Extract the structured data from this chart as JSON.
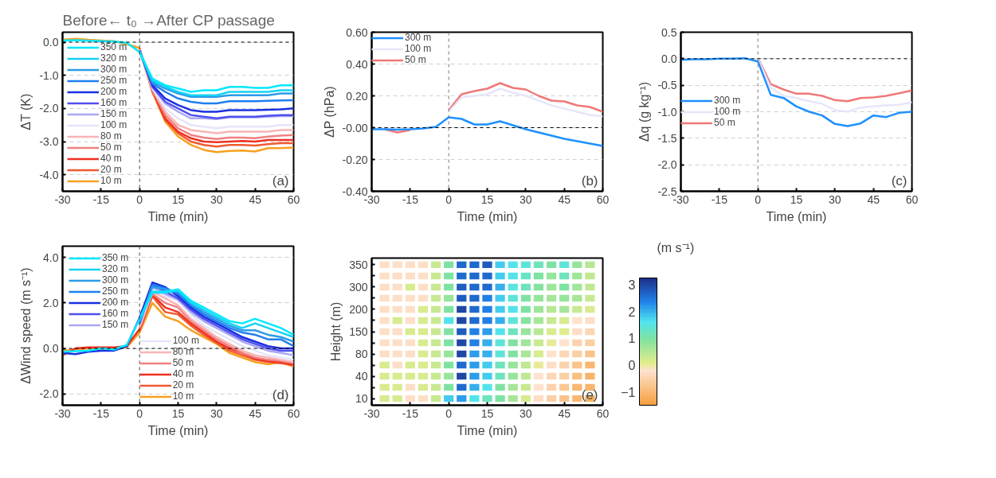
{
  "chart_data": [
    {
      "type": "line",
      "title": "Before← t₀ →After CP passage",
      "xlabel": "Time (min)",
      "ylabel": "ΔT (K)",
      "annotations": [
        "(a)"
      ],
      "legend": "left",
      "grid": "y",
      "line_style": "solid",
      "xlim": [
        -30,
        60
      ],
      "xticks": [
        -30,
        -15,
        0,
        15,
        30,
        45,
        60
      ],
      "ylim": [
        -4.5,
        0.3
      ],
      "yticks": [
        {
          "value": 0,
          "label": "0.0"
        },
        {
          "value": -1,
          "label": "-1.0"
        },
        {
          "value": -2,
          "label": "-2.0"
        },
        {
          "value": -3,
          "label": "-3.0"
        },
        {
          "value": -4,
          "label": "-4.0"
        }
      ],
      "ref_lines": [
        {
          "axis": "y",
          "value": 0,
          "color": "#000000",
          "line_style": "dashed"
        },
        {
          "axis": "x",
          "value": 0,
          "color": "#444444",
          "line_style": "dashed"
        }
      ],
      "x": [
        -30,
        -25,
        -20,
        -15,
        -10,
        -5,
        0,
        5,
        10,
        15,
        20,
        25,
        30,
        35,
        40,
        45,
        50,
        55,
        60
      ],
      "series": [
        {
          "name": "350 m",
          "color": "#00e8ff",
          "values": [
            0.05,
            0.06,
            0.04,
            0.03,
            0.02,
            -0.02,
            -0.3,
            -1.1,
            -1.3,
            -1.4,
            -1.5,
            -1.45,
            -1.45,
            -1.35,
            -1.35,
            -1.38,
            -1.38,
            -1.3,
            -1.3
          ]
        },
        {
          "name": "320 m",
          "color": "#16d2f2",
          "values": [
            null,
            null,
            null,
            null,
            null,
            null,
            -0.29,
            -1.15,
            -1.35,
            -1.5,
            -1.6,
            -1.6,
            -1.6,
            -1.5,
            -1.5,
            -1.5,
            -1.5,
            -1.45,
            -1.45
          ]
        },
        {
          "name": "300 m",
          "color": "#2a9ce8",
          "values": [
            null,
            null,
            null,
            null,
            null,
            null,
            -0.28,
            -1.2,
            -1.4,
            -1.55,
            -1.65,
            -1.65,
            -1.65,
            -1.6,
            -1.6,
            -1.6,
            -1.6,
            -1.55,
            -1.55
          ]
        },
        {
          "name": "250 m",
          "color": "#1e7ff0",
          "values": [
            null,
            null,
            null,
            null,
            null,
            null,
            -0.27,
            -1.25,
            -1.5,
            -1.7,
            -1.8,
            -1.85,
            -1.85,
            -1.78,
            -1.78,
            -1.78,
            -1.77,
            -1.76,
            -1.75
          ]
        },
        {
          "name": "200 m",
          "color": "#1a30e0",
          "values": [
            null,
            null,
            null,
            null,
            null,
            null,
            -0.26,
            -1.3,
            -1.7,
            -1.9,
            -2.05,
            -2.1,
            -2.1,
            -2.05,
            -2.05,
            -2.05,
            -2.04,
            -2.03,
            -2.0
          ]
        },
        {
          "name": "160 m",
          "color": "#5050f0",
          "values": [
            null,
            null,
            null,
            null,
            null,
            null,
            -0.25,
            -1.35,
            -1.8,
            -2.0,
            -2.2,
            -2.25,
            -2.3,
            -2.25,
            -2.25,
            -2.25,
            -2.22,
            -2.2,
            -2.2
          ]
        },
        {
          "name": "150 m",
          "color": "#a8a8f2",
          "values": [
            null,
            null,
            null,
            null,
            null,
            null,
            -0.24,
            -1.35,
            -1.85,
            -2.1,
            -2.3,
            -2.3,
            -2.32,
            -2.27,
            -2.27,
            -2.27,
            -2.25,
            -2.23,
            -2.23
          ]
        },
        {
          "name": "100 m",
          "color": "#e4e4fa",
          "values": [
            null,
            null,
            null,
            null,
            null,
            null,
            -0.23,
            -1.4,
            -2.0,
            -2.3,
            -2.5,
            -2.55,
            -2.6,
            -2.55,
            -2.55,
            -2.55,
            -2.55,
            -2.5,
            -2.5
          ]
        },
        {
          "name": "80 m",
          "color": "#f8b4b4",
          "values": [
            null,
            null,
            null,
            null,
            null,
            null,
            -0.22,
            -1.4,
            -2.1,
            -2.5,
            -2.65,
            -2.7,
            -2.75,
            -2.7,
            -2.7,
            -2.7,
            -2.7,
            -2.65,
            -2.65
          ]
        },
        {
          "name": "50 m",
          "color": "#f08080",
          "values": [
            null,
            null,
            null,
            null,
            null,
            null,
            -0.21,
            -1.45,
            -2.2,
            -2.6,
            -2.8,
            -2.88,
            -2.92,
            -2.88,
            -2.88,
            -2.9,
            -2.85,
            -2.82,
            -2.8
          ]
        },
        {
          "name": "40 m",
          "color": "#f03020",
          "values": [
            null,
            null,
            null,
            null,
            null,
            null,
            -0.2,
            -1.45,
            -2.3,
            -2.7,
            -2.9,
            -3.0,
            -3.02,
            -3.0,
            -2.98,
            -3.0,
            -2.95,
            -2.95,
            -2.95
          ]
        },
        {
          "name": "20 m",
          "color": "#f05a30",
          "values": [
            null,
            null,
            null,
            null,
            null,
            null,
            -0.19,
            -1.5,
            -2.35,
            -2.75,
            -3.0,
            -3.1,
            -3.15,
            -3.1,
            -3.1,
            -3.12,
            -3.08,
            -3.05,
            -3.05
          ]
        },
        {
          "name": "10 m",
          "color": "#f8a020",
          "values": [
            0.07,
            0.1,
            0.07,
            0.05,
            0.03,
            -0.06,
            -0.18,
            -1.5,
            -2.4,
            -2.85,
            -3.1,
            -3.25,
            -3.32,
            -3.28,
            -3.27,
            -3.3,
            -3.2,
            -3.2,
            -3.18
          ]
        }
      ]
    },
    {
      "type": "line",
      "xlabel": "Time (min)",
      "ylabel": "ΔP (hPa)",
      "annotations": [
        "(b)"
      ],
      "legend": "top left",
      "grid": "y",
      "line_style": "solid",
      "xlim": [
        -30,
        60
      ],
      "xticks": [
        -30,
        -15,
        0,
        15,
        30,
        45,
        60
      ],
      "ylim": [
        -0.4,
        0.6
      ],
      "yticks": [
        {
          "value": 0.6,
          "label": "0.60"
        },
        {
          "value": 0.4,
          "label": "0.40"
        },
        {
          "value": 0.2,
          "label": "0.20"
        },
        {
          "value": 0,
          "label": "-0.00"
        },
        {
          "value": -0.2,
          "label": "-0.20"
        },
        {
          "value": -0.4,
          "label": "-0.40"
        }
      ],
      "ref_lines": [
        {
          "axis": "y",
          "value": 0,
          "color": "#000000",
          "line_style": "dashed"
        },
        {
          "axis": "x",
          "value": 0,
          "color": "#777777",
          "line_style": "dashed"
        }
      ],
      "x": [
        -30,
        -25,
        -20,
        -15,
        -10,
        -5,
        0,
        5,
        10,
        15,
        20,
        25,
        30,
        35,
        40,
        45,
        50,
        55,
        60
      ],
      "series": [
        {
          "name": "300 m",
          "color": "#1e90ff",
          "values": [
            -0.01,
            -0.01,
            -0.012,
            -0.01,
            -0.005,
            0.005,
            0.065,
            0.055,
            0.02,
            0.02,
            0.04,
            0.015,
            -0.01,
            -0.03,
            -0.05,
            -0.07,
            -0.085,
            -0.1,
            -0.115
          ]
        },
        {
          "name": "100 m",
          "color": "#e6e6fa",
          "values": [
            null,
            null,
            null,
            null,
            null,
            null,
            0.1,
            0.19,
            0.2,
            0.21,
            0.245,
            0.22,
            0.2,
            0.17,
            0.14,
            0.12,
            0.1,
            0.08,
            0.07
          ]
        },
        {
          "name": "50 m",
          "color": "#f07878",
          "values": [
            null,
            -0.01,
            -0.03,
            -0.015,
            null,
            null,
            0.11,
            0.21,
            0.23,
            0.245,
            0.28,
            0.25,
            0.24,
            0.2,
            0.17,
            0.165,
            0.14,
            0.13,
            0.1
          ]
        }
      ]
    },
    {
      "type": "line",
      "xlabel": "Time (min)",
      "ylabel": "Δq (g kg⁻¹)",
      "annotations": [
        "(c)"
      ],
      "legend": "left",
      "grid": "y",
      "line_style": "solid",
      "xlim": [
        -30,
        60
      ],
      "xticks": [
        -30,
        -15,
        0,
        15,
        30,
        45,
        60
      ],
      "ylim": [
        -2.5,
        0.5
      ],
      "yticks": [
        {
          "value": 0.5,
          "label": "0.5"
        },
        {
          "value": 0,
          "label": "0.0"
        },
        {
          "value": -0.5,
          "label": "-0.5"
        },
        {
          "value": -1,
          "label": "-1.0"
        },
        {
          "value": -1.5,
          "label": "-1.5"
        },
        {
          "value": -2,
          "label": "-2.0"
        },
        {
          "value": -2.5,
          "label": "-2.5"
        }
      ],
      "ref_lines": [
        {
          "axis": "y",
          "value": 0,
          "color": "#000000",
          "line_style": "dashed"
        },
        {
          "axis": "x",
          "value": 0,
          "color": "#777777",
          "line_style": "dashed"
        }
      ],
      "x": [
        -30,
        -25,
        -20,
        -15,
        -10,
        -5,
        0,
        5,
        10,
        15,
        20,
        25,
        30,
        35,
        40,
        45,
        50,
        55,
        60
      ],
      "series": [
        {
          "name": "300 m",
          "color": "#1e90ff",
          "values": [
            -0.02,
            -0.01,
            -0.01,
            0,
            0,
            0.01,
            -0.05,
            -0.68,
            -0.74,
            -0.9,
            -1.0,
            -1.07,
            -1.23,
            -1.27,
            -1.22,
            -1.07,
            -1.1,
            -1.02,
            -1.0
          ]
        },
        {
          "name": "100 m",
          "color": "#e6e6fa",
          "values": [
            null,
            null,
            null,
            null,
            null,
            null,
            0,
            -0.55,
            -0.7,
            -0.74,
            -0.8,
            -0.85,
            -0.97,
            -1.0,
            -0.92,
            -0.9,
            -0.88,
            -0.87,
            -0.82
          ]
        },
        {
          "name": "50 m",
          "color": "#f07878",
          "values": [
            null,
            null,
            null,
            null,
            null,
            null,
            0.01,
            -0.48,
            -0.58,
            -0.66,
            -0.66,
            -0.7,
            -0.78,
            -0.8,
            -0.74,
            -0.73,
            -0.7,
            -0.65,
            -0.6
          ]
        }
      ]
    },
    {
      "type": "line",
      "xlabel": "Time (min)",
      "ylabel": "ΔWind speed (m s⁻¹)",
      "annotations": [
        "(d)"
      ],
      "legend": "left",
      "grid": "y",
      "line_style": "solid",
      "xlim": [
        -30,
        60
      ],
      "xticks": [
        -30,
        -15,
        0,
        15,
        30,
        45,
        60
      ],
      "ylim": [
        -2.5,
        4.5
      ],
      "yticks": [
        {
          "value": 4,
          "label": "4.0"
        },
        {
          "value": 2,
          "label": "2.0"
        },
        {
          "value": 0,
          "label": "0.0"
        },
        {
          "value": -2,
          "label": "-2.0"
        }
      ],
      "ref_lines": [
        {
          "axis": "y",
          "value": 0,
          "color": "#000000",
          "line_style": "dashed"
        },
        {
          "axis": "x",
          "value": 0,
          "color": "#444444",
          "line_style": "dashed"
        }
      ],
      "x": [
        -30,
        -25,
        -20,
        -15,
        -10,
        -5,
        0,
        5,
        10,
        15,
        20,
        25,
        30,
        35,
        40,
        45,
        50,
        55,
        60
      ],
      "series": [
        {
          "name": "350 m",
          "color": "#00e8ff",
          "values": [
            -0.15,
            -0.12,
            -0.1,
            0.0,
            -0.05,
            0.15,
            1.3,
            2.5,
            2.5,
            2.6,
            2.1,
            1.8,
            1.5,
            1.2,
            1.1,
            1.3,
            1.1,
            0.9,
            0.6
          ]
        },
        {
          "name": "320 m",
          "color": "#16d2f2",
          "values": [
            null,
            null,
            null,
            null,
            null,
            null,
            1.25,
            2.45,
            2.45,
            2.55,
            2.0,
            1.7,
            1.4,
            1.1,
            0.9,
            1.1,
            0.9,
            0.7,
            0.5
          ]
        },
        {
          "name": "300 m",
          "color": "#2a9ce8",
          "values": [
            null,
            null,
            null,
            null,
            null,
            null,
            1.2,
            2.7,
            2.6,
            2.5,
            2.0,
            1.6,
            1.3,
            1.0,
            0.8,
            0.8,
            0.6,
            0.5,
            0.3
          ]
        },
        {
          "name": "250 m",
          "color": "#1e7ff0",
          "values": [
            null,
            null,
            null,
            null,
            null,
            null,
            1.15,
            2.8,
            2.65,
            2.4,
            1.9,
            1.5,
            1.2,
            0.9,
            0.7,
            0.6,
            0.4,
            0.4,
            0.1
          ]
        },
        {
          "name": "200 m",
          "color": "#1a30e0",
          "values": [
            -0.2,
            -0.25,
            -0.15,
            -0.1,
            -0.1,
            0.1,
            1.35,
            2.9,
            2.7,
            2.3,
            1.8,
            1.4,
            1.1,
            0.8,
            0.5,
            0.3,
            0.1,
            0.0,
            0.0
          ]
        },
        {
          "name": "160 m",
          "color": "#5050f0",
          "values": [
            null,
            null,
            null,
            null,
            null,
            null,
            1.1,
            2.8,
            2.5,
            2.2,
            1.7,
            1.3,
            1.0,
            0.7,
            0.4,
            0.2,
            0.0,
            -0.1,
            -0.1
          ]
        },
        {
          "name": "150 m",
          "color": "#a8a8f2",
          "values": [
            null,
            null,
            null,
            null,
            null,
            null,
            1.05,
            2.7,
            2.4,
            2.15,
            1.6,
            1.2,
            0.9,
            0.6,
            0.3,
            0.1,
            -0.1,
            -0.2,
            -0.3
          ]
        },
        {
          "name": "100 m",
          "color": "#e4e4fa",
          "values": [
            null,
            null,
            null,
            null,
            null,
            null,
            1.0,
            2.6,
            2.3,
            2.1,
            1.5,
            1.0,
            0.7,
            0.4,
            0.1,
            -0.1,
            -0.3,
            -0.4,
            -0.5
          ]
        },
        {
          "name": "80 m",
          "color": "#f8b4b4",
          "values": [
            null,
            null,
            null,
            null,
            null,
            null,
            0.95,
            2.5,
            2.2,
            1.9,
            1.3,
            0.9,
            0.5,
            0.2,
            -0.1,
            -0.3,
            -0.4,
            -0.5,
            -0.6
          ]
        },
        {
          "name": "50 m",
          "color": "#f08080",
          "values": [
            null,
            null,
            null,
            null,
            null,
            null,
            0.9,
            2.4,
            2.0,
            1.8,
            1.2,
            0.8,
            0.4,
            0.1,
            -0.2,
            -0.4,
            -0.5,
            -0.55,
            -0.65
          ]
        },
        {
          "name": "40 m",
          "color": "#f03020",
          "values": [
            -0.3,
            0.0,
            0.05,
            0.05,
            0.05,
            0.1,
            0.85,
            2.35,
            1.8,
            1.6,
            1.1,
            0.7,
            0.3,
            0.0,
            -0.2,
            -0.45,
            -0.55,
            -0.6,
            -0.7
          ]
        },
        {
          "name": "20 m",
          "color": "#f05a30",
          "values": [
            null,
            null,
            null,
            null,
            null,
            null,
            0.8,
            2.3,
            1.6,
            1.5,
            1.0,
            0.6,
            0.25,
            -0.1,
            -0.3,
            -0.5,
            -0.6,
            -0.65,
            -0.75
          ]
        },
        {
          "name": "10 m",
          "color": "#f8a020",
          "values": [
            -0.1,
            -0.05,
            0.0,
            -0.02,
            0.0,
            0.05,
            0.7,
            2.0,
            1.4,
            1.2,
            0.8,
            0.5,
            0.2,
            -0.2,
            -0.4,
            -0.6,
            -0.7,
            -0.6,
            -0.8
          ]
        }
      ]
    },
    {
      "type": "heatmap",
      "xlabel": "Time (min)",
      "ylabel": "Height (m)",
      "clabel": "(m s⁻¹)",
      "annotations": [
        "(e)"
      ],
      "xlim": [
        -30,
        60
      ],
      "xticks": [
        -30,
        -15,
        0,
        15,
        30,
        45,
        60
      ],
      "x": [
        -25,
        -20,
        -15,
        -10,
        -5,
        0,
        5,
        10,
        15,
        20,
        25,
        30,
        35,
        40,
        45,
        50,
        55
      ],
      "y_categories": [
        "350",
        null,
        "300",
        null,
        "200",
        null,
        "150",
        null,
        "80",
        null,
        "40",
        null,
        "10"
      ],
      "clim": [
        -1.5,
        3.25
      ],
      "cticks": [
        -1,
        0,
        1,
        2,
        3
      ],
      "cells": [
        [
          -0.3,
          -0.3,
          -0.3,
          -0.3,
          0.3,
          1.0,
          2.6,
          2.6,
          2.8,
          1.8,
          1.6,
          1.4,
          1.2,
          1.0,
          1.4,
          0.8,
          0.5
        ],
        [
          -0.3,
          -0.3,
          -0.3,
          -0.3,
          0.3,
          1.0,
          2.6,
          2.6,
          2.6,
          1.8,
          1.6,
          1.3,
          1.0,
          0.8,
          1.2,
          0.7,
          0.4
        ],
        [
          -0.3,
          -0.3,
          0.2,
          -0.3,
          0.3,
          1.0,
          2.8,
          2.6,
          2.6,
          2.0,
          1.5,
          1.2,
          0.9,
          0.7,
          1.0,
          0.7,
          0.4
        ],
        [
          -0.3,
          -0.3,
          -0.3,
          -0.3,
          0.3,
          0.8,
          2.8,
          2.6,
          2.4,
          1.8,
          1.4,
          1.0,
          0.8,
          0.6,
          0.8,
          0.6,
          0.3
        ],
        [
          -0.3,
          -0.3,
          -0.3,
          0.2,
          0.3,
          1.0,
          3.0,
          2.6,
          2.4,
          1.8,
          1.6,
          1.0,
          0.7,
          0.5,
          0.6,
          0.3,
          0.2
        ],
        [
          -0.3,
          0.2,
          -0.3,
          0.2,
          0.3,
          1.6,
          3.0,
          2.6,
          2.4,
          2.0,
          1.4,
          0.9,
          0.6,
          0.3,
          0.2,
          -0.2,
          -0.3
        ],
        [
          -0.3,
          -0.3,
          0.2,
          0.2,
          0.3,
          1.0,
          2.8,
          2.4,
          2.2,
          1.6,
          1.2,
          0.8,
          0.5,
          0.2,
          0.1,
          -0.3,
          -0.4
        ],
        [
          -0.3,
          -0.3,
          -0.3,
          0.2,
          0.3,
          1.0,
          3.0,
          2.4,
          2.0,
          1.4,
          1.0,
          0.7,
          0.3,
          0.0,
          -0.2,
          -0.5,
          -0.6
        ],
        [
          -0.3,
          -0.3,
          -0.3,
          0.2,
          0.3,
          0.8,
          3.0,
          2.2,
          2.0,
          1.4,
          1.0,
          0.6,
          0.2,
          -0.2,
          -0.4,
          -0.6,
          -0.8
        ],
        [
          0.2,
          -0.3,
          0.2,
          0.2,
          0.3,
          1.0,
          2.6,
          2.2,
          1.8,
          1.2,
          0.8,
          0.4,
          0.0,
          -0.3,
          -0.5,
          -0.8,
          -1.0
        ],
        [
          0.2,
          0.2,
          0.2,
          0.2,
          0.3,
          0.8,
          3.0,
          2.2,
          1.8,
          1.2,
          0.8,
          0.4,
          -0.2,
          -0.4,
          -0.6,
          -0.9,
          -1.1
        ],
        [
          0.2,
          0.2,
          -0.3,
          0.2,
          0.3,
          1.0,
          2.6,
          2.0,
          1.6,
          1.0,
          0.6,
          0.3,
          -0.2,
          -0.5,
          -0.7,
          -1.0,
          -1.1
        ],
        [
          0.2,
          0.2,
          -0.3,
          -0.3,
          0.3,
          1.8,
          2.2,
          1.6,
          1.2,
          1.0,
          0.6,
          0.2,
          -0.3,
          -0.6,
          -0.8,
          -1.0,
          -1.2
        ]
      ]
    }
  ]
}
